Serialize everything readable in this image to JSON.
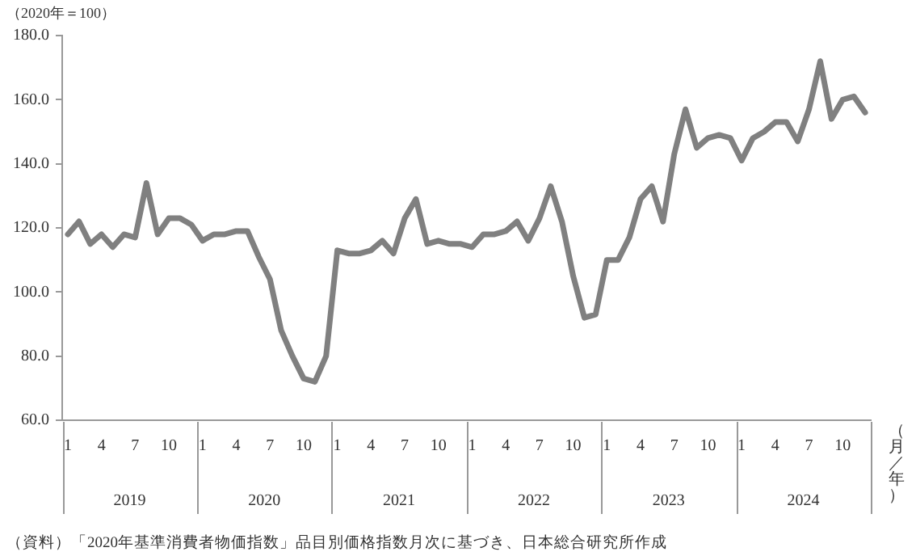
{
  "chart_data": {
    "type": "line",
    "ylabel": "（2020年＝100）",
    "xlabel": "（月／年）",
    "categories": [
      "1",
      null,
      null,
      "4",
      null,
      null,
      "7",
      null,
      null,
      "10",
      null,
      null,
      "1",
      null,
      null,
      "4",
      null,
      null,
      "7",
      null,
      null,
      "10",
      null,
      null,
      "1",
      null,
      null,
      "4",
      null,
      null,
      "7",
      null,
      null,
      "10",
      null,
      null,
      "1",
      null,
      null,
      "4",
      null,
      null,
      "7",
      null,
      null,
      "10",
      null,
      null,
      "1",
      null,
      null,
      "4",
      null,
      null,
      "7",
      null,
      null,
      "10",
      null,
      null,
      "1",
      null,
      null,
      "4",
      null,
      null,
      "7",
      null,
      null,
      "10",
      null,
      null
    ],
    "series": [
      {
        "color": "#808080",
        "values": [
          118,
          122,
          115,
          118,
          114,
          118,
          117,
          134,
          118,
          123,
          123,
          121,
          116,
          118,
          118,
          119,
          119,
          111,
          104,
          88,
          80,
          73,
          72,
          80,
          113,
          112,
          112,
          113,
          116,
          112,
          123,
          129,
          115,
          116,
          115,
          115,
          114,
          118,
          118,
          119,
          122,
          116,
          123,
          133,
          122,
          105,
          92,
          93,
          110,
          110,
          117,
          129,
          133,
          122,
          143,
          157,
          145,
          148,
          149,
          148,
          141,
          148,
          150,
          153,
          153,
          147,
          157,
          172,
          154,
          160,
          161,
          156
        ]
      }
    ],
    "ylim": [
      60,
      180
    ],
    "yticks": [
      {
        "value": 60,
        "label": "60.0"
      },
      {
        "value": 80,
        "label": "80.0"
      },
      {
        "value": 100,
        "label": "100.0"
      },
      {
        "value": 120,
        "label": "120.0"
      },
      {
        "value": 140,
        "label": "140.0"
      },
      {
        "value": 160,
        "label": "160.0"
      },
      {
        "value": 180,
        "label": "180.0"
      }
    ],
    "grid": false,
    "legend": false,
    "marker": "none",
    "line_style": "solid",
    "annotations": [
      "2019",
      "2020",
      "2021",
      "2022",
      "2023",
      "2024",
      "（資料）「2020年基準消費者物価指数」品目別価格指数月次に基づき、日本総合研究所作成"
    ]
  }
}
